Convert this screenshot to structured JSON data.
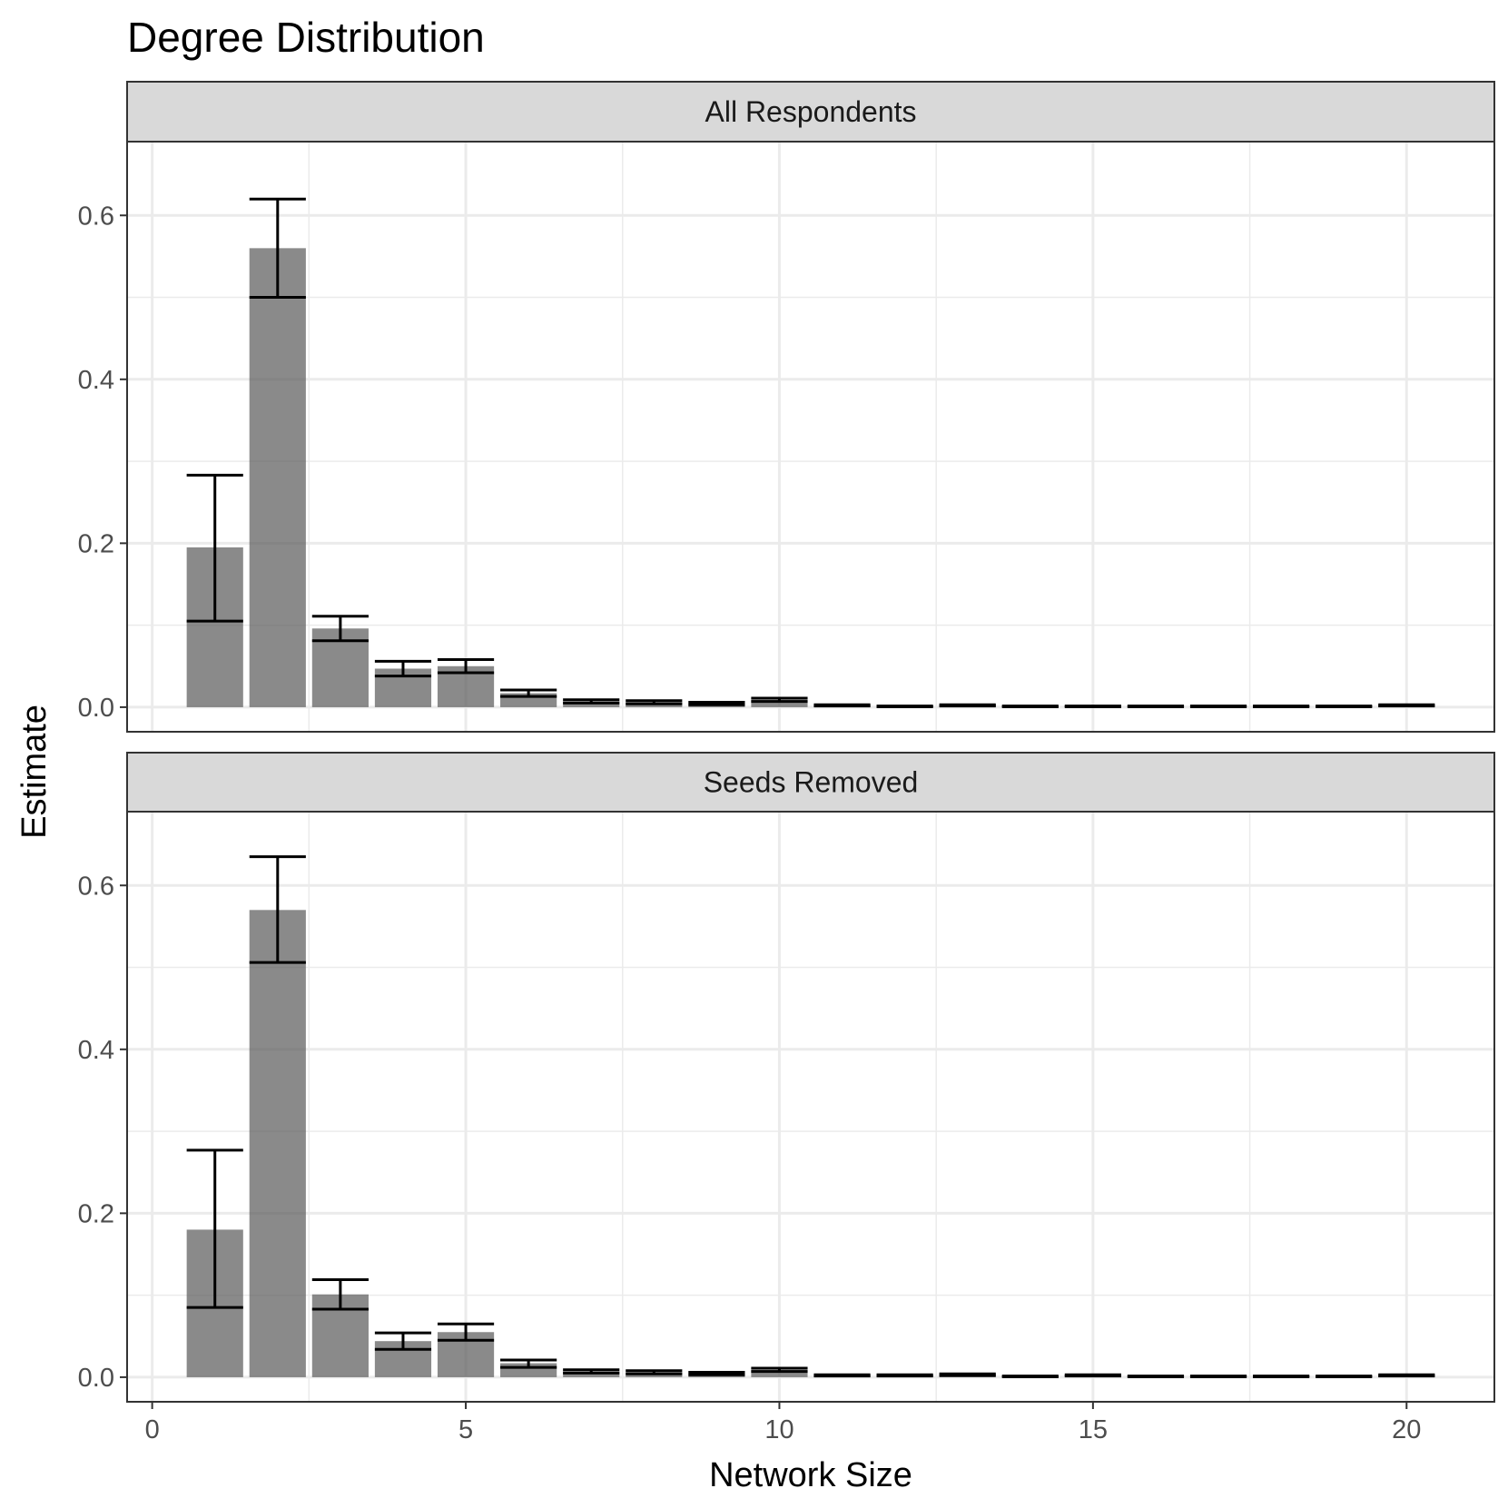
{
  "chart_data": {
    "type": "bar",
    "title": "Degree Distribution",
    "xlabel": "Network Size",
    "ylabel": "Estimate",
    "xlim": [
      -0.4,
      21.4
    ],
    "ylim": [
      -0.03,
      0.69
    ],
    "x_ticks": [
      0,
      5,
      10,
      15,
      20
    ],
    "x_tick_labels": [
      "0",
      "5",
      "10",
      "15",
      "20"
    ],
    "y_ticks": [
      0.0,
      0.2,
      0.4,
      0.6
    ],
    "y_tick_labels": [
      "0.0",
      "0.2",
      "0.4",
      "0.6"
    ],
    "grid": true,
    "bar_color": "#595959",
    "bar_opacity": 0.7,
    "error_bar_color": "#000000",
    "panels": [
      {
        "strip_label": "All Respondents",
        "bars": [
          {
            "x": 1,
            "value": 0.195,
            "lower": 0.105,
            "upper": 0.283
          },
          {
            "x": 2,
            "value": 0.56,
            "lower": 0.5,
            "upper": 0.62
          },
          {
            "x": 3,
            "value": 0.096,
            "lower": 0.081,
            "upper": 0.111
          },
          {
            "x": 4,
            "value": 0.047,
            "lower": 0.038,
            "upper": 0.056
          },
          {
            "x": 5,
            "value": 0.05,
            "lower": 0.042,
            "upper": 0.058
          },
          {
            "x": 6,
            "value": 0.017,
            "lower": 0.013,
            "upper": 0.021
          },
          {
            "x": 7,
            "value": 0.007,
            "lower": 0.005,
            "upper": 0.009
          },
          {
            "x": 8,
            "value": 0.006,
            "lower": 0.004,
            "upper": 0.008
          },
          {
            "x": 9,
            "value": 0.004,
            "lower": 0.003,
            "upper": 0.006
          },
          {
            "x": 10,
            "value": 0.009,
            "lower": 0.007,
            "upper": 0.011
          },
          {
            "x": 11,
            "value": 0.002,
            "lower": 0.0015,
            "upper": 0.003
          },
          {
            "x": 12,
            "value": 0.001,
            "lower": 0.0005,
            "upper": 0.0015
          },
          {
            "x": 13,
            "value": 0.002,
            "lower": 0.0015,
            "upper": 0.003
          },
          {
            "x": 14,
            "value": 0.001,
            "lower": 0.0005,
            "upper": 0.0015
          },
          {
            "x": 15,
            "value": 0.001,
            "lower": 0.0005,
            "upper": 0.0015
          },
          {
            "x": 16,
            "value": 0.001,
            "lower": 0.0005,
            "upper": 0.0015
          },
          {
            "x": 17,
            "value": 0.001,
            "lower": 0.0005,
            "upper": 0.0015
          },
          {
            "x": 18,
            "value": 0.001,
            "lower": 0.0005,
            "upper": 0.0015
          },
          {
            "x": 19,
            "value": 0.001,
            "lower": 0.0005,
            "upper": 0.0015
          },
          {
            "x": 20,
            "value": 0.002,
            "lower": 0.0015,
            "upper": 0.003
          }
        ]
      },
      {
        "strip_label": "Seeds Removed",
        "bars": [
          {
            "x": 1,
            "value": 0.18,
            "lower": 0.085,
            "upper": 0.277
          },
          {
            "x": 2,
            "value": 0.57,
            "lower": 0.506,
            "upper": 0.635
          },
          {
            "x": 3,
            "value": 0.101,
            "lower": 0.083,
            "upper": 0.119
          },
          {
            "x": 4,
            "value": 0.044,
            "lower": 0.034,
            "upper": 0.054
          },
          {
            "x": 5,
            "value": 0.055,
            "lower": 0.045,
            "upper": 0.065
          },
          {
            "x": 6,
            "value": 0.017,
            "lower": 0.012,
            "upper": 0.021
          },
          {
            "x": 7,
            "value": 0.007,
            "lower": 0.005,
            "upper": 0.009
          },
          {
            "x": 8,
            "value": 0.006,
            "lower": 0.004,
            "upper": 0.008
          },
          {
            "x": 9,
            "value": 0.004,
            "lower": 0.003,
            "upper": 0.006
          },
          {
            "x": 10,
            "value": 0.009,
            "lower": 0.007,
            "upper": 0.011
          },
          {
            "x": 11,
            "value": 0.002,
            "lower": 0.0015,
            "upper": 0.003
          },
          {
            "x": 12,
            "value": 0.002,
            "lower": 0.0015,
            "upper": 0.003
          },
          {
            "x": 13,
            "value": 0.003,
            "lower": 0.002,
            "upper": 0.004
          },
          {
            "x": 14,
            "value": 0.001,
            "lower": 0.0005,
            "upper": 0.0015
          },
          {
            "x": 15,
            "value": 0.002,
            "lower": 0.0015,
            "upper": 0.003
          },
          {
            "x": 16,
            "value": 0.001,
            "lower": 0.0005,
            "upper": 0.0015
          },
          {
            "x": 17,
            "value": 0.001,
            "lower": 0.0005,
            "upper": 0.0015
          },
          {
            "x": 18,
            "value": 0.001,
            "lower": 0.0005,
            "upper": 0.0015
          },
          {
            "x": 19,
            "value": 0.001,
            "lower": 0.0005,
            "upper": 0.0015
          },
          {
            "x": 20,
            "value": 0.002,
            "lower": 0.0015,
            "upper": 0.003
          }
        ]
      }
    ]
  }
}
